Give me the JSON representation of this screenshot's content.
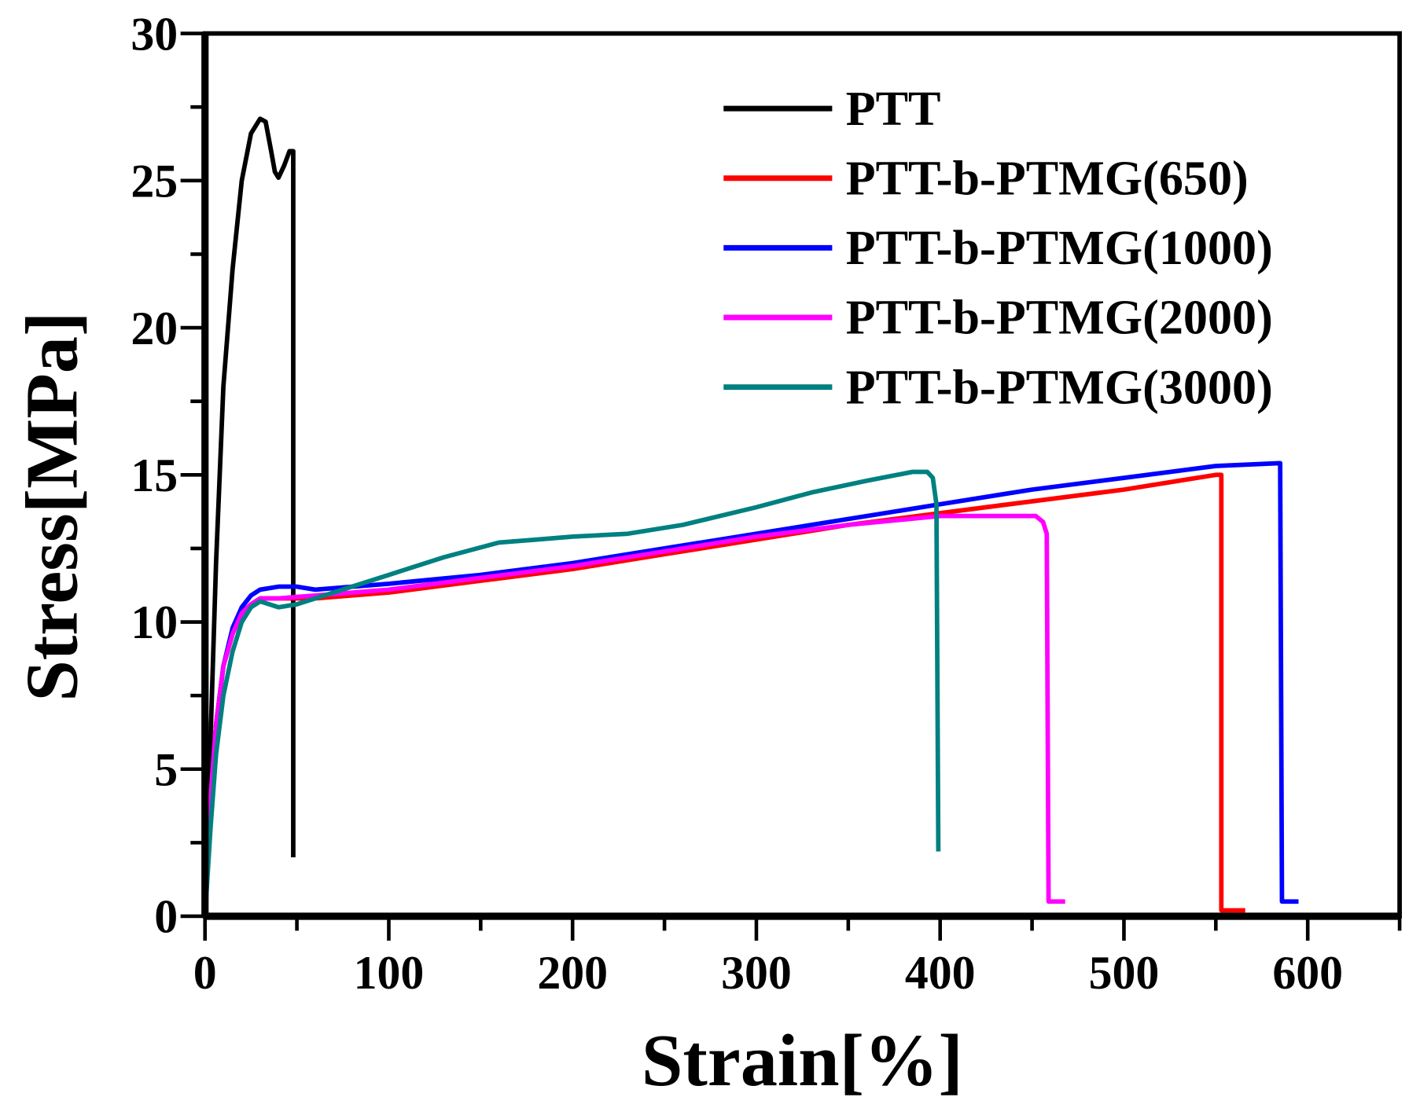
{
  "chart_data": {
    "type": "line",
    "title": "",
    "xlabel": "Strain[%]",
    "ylabel": "Stress[MPa]",
    "xlim": [
      0,
      650
    ],
    "ylim": [
      0,
      30
    ],
    "xticks": [
      "0",
      "100",
      "200",
      "300",
      "400",
      "500",
      "600"
    ],
    "xtick_values": [
      0,
      100,
      200,
      300,
      400,
      500,
      600
    ],
    "yticks": [
      "0",
      "5",
      "10",
      "15",
      "20",
      "25",
      "30"
    ],
    "ytick_values": [
      0,
      5,
      10,
      15,
      20,
      25,
      30
    ],
    "grid": false,
    "legend_position": "top-right",
    "series": [
      {
        "name": "PTT",
        "color": "#000000",
        "x": [
          0,
          3,
          6,
          10,
          15,
          20,
          25,
          30,
          33,
          36,
          38,
          40,
          43,
          46,
          48,
          48
        ],
        "y": [
          0,
          6,
          12,
          18,
          22,
          25,
          26.6,
          27.1,
          27.0,
          26,
          25.3,
          25.1,
          25.5,
          26,
          26,
          2
        ]
      },
      {
        "name": "PTT-b-PTMG(650)",
        "color": "#ff0000",
        "x": [
          0,
          3,
          6,
          10,
          15,
          20,
          25,
          30,
          40,
          60,
          100,
          150,
          200,
          250,
          300,
          350,
          400,
          450,
          500,
          550,
          553,
          553,
          566
        ],
        "y": [
          0,
          4,
          6.5,
          8.5,
          9.6,
          10.3,
          10.6,
          10.8,
          10.8,
          10.8,
          11.0,
          11.4,
          11.8,
          12.3,
          12.8,
          13.3,
          13.7,
          14.1,
          14.5,
          15.0,
          15.0,
          0.2,
          0.2
        ]
      },
      {
        "name": "PTT-b-PTMG(1000)",
        "color": "#0000ff",
        "x": [
          0,
          3,
          6,
          10,
          15,
          20,
          25,
          30,
          40,
          50,
          60,
          100,
          150,
          200,
          250,
          300,
          350,
          400,
          450,
          500,
          550,
          585,
          586,
          595
        ],
        "y": [
          0,
          4,
          6.5,
          8.5,
          9.8,
          10.5,
          10.9,
          11.1,
          11.2,
          11.2,
          11.1,
          11.3,
          11.6,
          12.0,
          12.5,
          13.0,
          13.5,
          14.0,
          14.5,
          14.9,
          15.3,
          15.4,
          0.5,
          0.5
        ]
      },
      {
        "name": "PTT-b-PTMG(2000)",
        "color": "#ff00ff",
        "x": [
          0,
          3,
          6,
          10,
          15,
          20,
          25,
          30,
          40,
          60,
          100,
          150,
          200,
          250,
          300,
          350,
          400,
          440,
          452,
          456,
          458,
          459,
          468
        ],
        "y": [
          0,
          4,
          6.5,
          8.5,
          9.6,
          10.3,
          10.6,
          10.8,
          10.8,
          10.9,
          11.1,
          11.5,
          11.9,
          12.4,
          12.9,
          13.3,
          13.6,
          13.6,
          13.6,
          13.4,
          13,
          0.5,
          0.5
        ]
      },
      {
        "name": "PTT-b-PTMG(3000)",
        "color": "#008080",
        "x": [
          0,
          3,
          6,
          10,
          15,
          20,
          25,
          30,
          35,
          40,
          50,
          60,
          80,
          100,
          130,
          160,
          180,
          200,
          230,
          260,
          300,
          330,
          360,
          385,
          393,
          396,
          398,
          399
        ],
        "y": [
          0,
          3,
          5.5,
          7.5,
          9,
          10,
          10.5,
          10.7,
          10.6,
          10.5,
          10.6,
          10.8,
          11.2,
          11.6,
          12.2,
          12.7,
          12.8,
          12.9,
          13.0,
          13.3,
          13.9,
          14.4,
          14.8,
          15.1,
          15.1,
          14.9,
          14,
          2.2
        ]
      }
    ]
  }
}
